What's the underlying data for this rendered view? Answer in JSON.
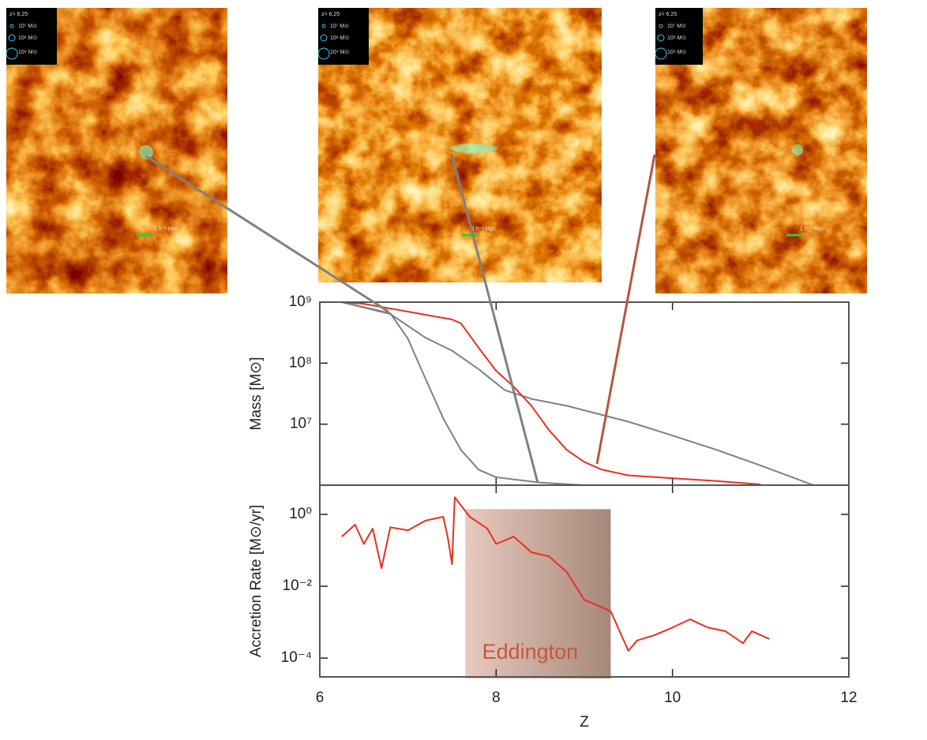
{
  "images": [
    {
      "redshift": "z= 6.25",
      "legend": [
        "10⁷ M⊙",
        "10⁸ M⊙",
        "10⁹ M⊙"
      ],
      "scale": "1 h⁻¹ Mpc"
    },
    {
      "redshift": "z= 6.25",
      "legend": [
        "10⁷ M⊙",
        "10⁸ M⊙",
        "10⁹ M⊙"
      ],
      "scale": "1 h⁻¹ Mpc"
    },
    {
      "redshift": "z= 6.25",
      "legend": [
        "10⁷ M⊙",
        "10⁸ M⊙",
        "10⁹ M⊙"
      ],
      "scale": "1 h⁻¹ Mpc"
    }
  ],
  "chart_data": [
    {
      "type": "line",
      "ylabel": "Mass  [M⊙]",
      "ylog": true,
      "xlim": [
        6,
        12
      ],
      "xticks": [
        6,
        8,
        10,
        12
      ],
      "ylim": [
        1000000,
        1000000000
      ],
      "yticks": [
        {
          "value": 10000000,
          "label": "10⁷"
        },
        {
          "value": 100000000,
          "label": "10⁸"
        },
        {
          "value": 1000000000,
          "label": "10⁹"
        }
      ],
      "series": [
        {
          "color": "#808080",
          "x": [
            6.25,
            6.8,
            7.0,
            7.2,
            7.4,
            7.6,
            7.8,
            8.0,
            8.5,
            9.0
          ],
          "values": [
            1000000000,
            660000000,
            250000000,
            55000000,
            12500000,
            3800000,
            1800000,
            1350000,
            1100000,
            1000000
          ]
        },
        {
          "color": "#808080",
          "x": [
            6.25,
            6.8,
            7.2,
            7.5,
            7.8,
            8.1,
            8.4,
            8.8,
            9.5,
            10.0,
            10.5,
            11.0,
            11.6
          ],
          "values": [
            1000000000,
            640000000,
            260000000,
            160000000,
            80000000,
            36000000,
            26000000,
            20000000,
            11000000,
            6500000,
            3800000,
            2100000,
            1000000
          ]
        },
        {
          "color": "#e8301c",
          "x": [
            6.25,
            6.5,
            7.0,
            7.5,
            7.6,
            7.8,
            8.0,
            8.2,
            8.4,
            8.6,
            8.8,
            9.0,
            9.2,
            9.5,
            10.0,
            10.5,
            11.0
          ],
          "values": [
            1000000000,
            940000000,
            700000000,
            520000000,
            450000000,
            180000000,
            75000000,
            41000000,
            20000000,
            8000000,
            3800000,
            2400000,
            1800000,
            1450000,
            1300000,
            1170000,
            1030000
          ]
        }
      ]
    },
    {
      "type": "line",
      "ylabel": "Accretion  Rate  [M⊙/yr]",
      "xlabel": "Z",
      "ylog": true,
      "xlim": [
        6,
        12
      ],
      "xticks": [
        6,
        8,
        10,
        12
      ],
      "ylim": [
        3e-05,
        6.5
      ],
      "yticks": [
        {
          "value": 0.0001,
          "label": "10⁻⁴"
        },
        {
          "value": 0.01,
          "label": "10⁻²"
        },
        {
          "value": 1,
          "label": "10⁰"
        }
      ],
      "shade": {
        "label": "Eddington",
        "x": [
          7.65,
          9.3
        ],
        "top": 1.4
      },
      "series": [
        {
          "color": "#e8301c",
          "x": [
            6.25,
            6.4,
            6.5,
            6.6,
            6.7,
            6.8,
            7.0,
            7.2,
            7.4,
            7.45,
            7.5,
            7.53,
            7.7,
            7.9,
            8.0,
            8.2,
            8.4,
            8.6,
            8.8,
            9.0,
            9.2,
            9.3,
            9.4,
            9.5,
            9.6,
            9.8,
            10.0,
            10.2,
            10.4,
            10.6,
            10.8,
            10.9,
            11.1
          ],
          "values": [
            0.24,
            0.52,
            0.15,
            0.4,
            0.032,
            0.44,
            0.36,
            0.67,
            0.86,
            0.24,
            0.041,
            3.0,
            0.86,
            0.4,
            0.15,
            0.24,
            0.088,
            0.068,
            0.025,
            0.0042,
            0.0026,
            0.002,
            0.00056,
            0.00016,
            0.00031,
            0.00044,
            0.00071,
            0.0012,
            0.00071,
            0.00056,
            0.00026,
            0.00056,
            0.00034
          ]
        }
      ]
    }
  ]
}
